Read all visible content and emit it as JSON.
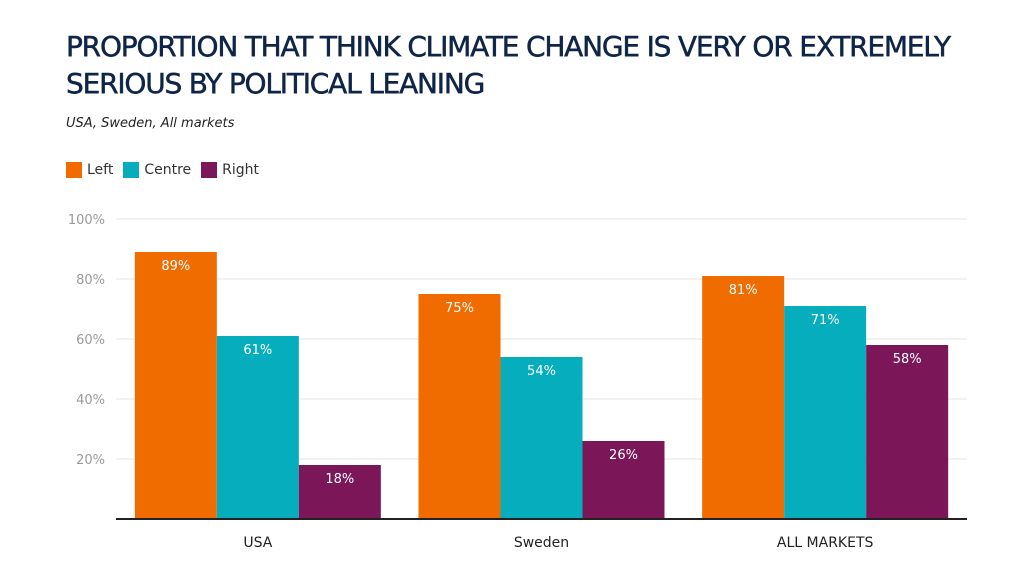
{
  "chart_data": {
    "type": "bar",
    "title": "PROPORTION THAT THINK CLIMATE CHANGE IS VERY OR EXTREMELY SERIOUS BY POLITICAL LEANING",
    "subtitle": "USA, Sweden, All markets",
    "categories": [
      "USA",
      "Sweden",
      "ALL MARKETS"
    ],
    "series": [
      {
        "name": "Left",
        "color": "#f06b00",
        "values": [
          89,
          75,
          81
        ]
      },
      {
        "name": "Centre",
        "color": "#06aebd",
        "values": [
          61,
          54,
          71
        ]
      },
      {
        "name": "Right",
        "color": "#7b1659",
        "values": [
          18,
          26,
          58
        ]
      }
    ],
    "value_suffix": "%",
    "ylim": [
      0,
      100
    ],
    "yticks": [
      20,
      40,
      60,
      80,
      100
    ],
    "ytick_labels": [
      "20%",
      "40%",
      "60%",
      "80%",
      "100%"
    ],
    "grid": true,
    "legend": "top-left",
    "xlabel": "",
    "ylabel": ""
  }
}
